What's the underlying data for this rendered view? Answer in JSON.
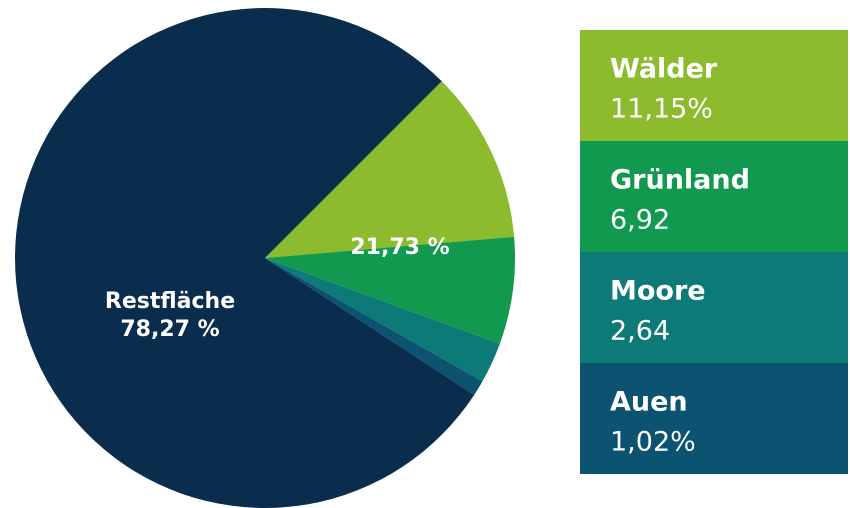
{
  "chart_data": {
    "type": "pie",
    "categories": [
      "Wälder",
      "Grünland",
      "Moore",
      "Auen",
      "Restfläche"
    ],
    "values": [
      11.15,
      6.92,
      2.64,
      1.02,
      78.27
    ],
    "value_labels": [
      "11,15%",
      "6,92",
      "2,64",
      "1,02%",
      "78,27 %"
    ],
    "colors": [
      "#8dbb2e",
      "#10994f",
      "#0e7a77",
      "#0c5271",
      "#0b2d4d"
    ],
    "annotations": [
      "21,73 %"
    ],
    "start_angle": 45
  }
}
